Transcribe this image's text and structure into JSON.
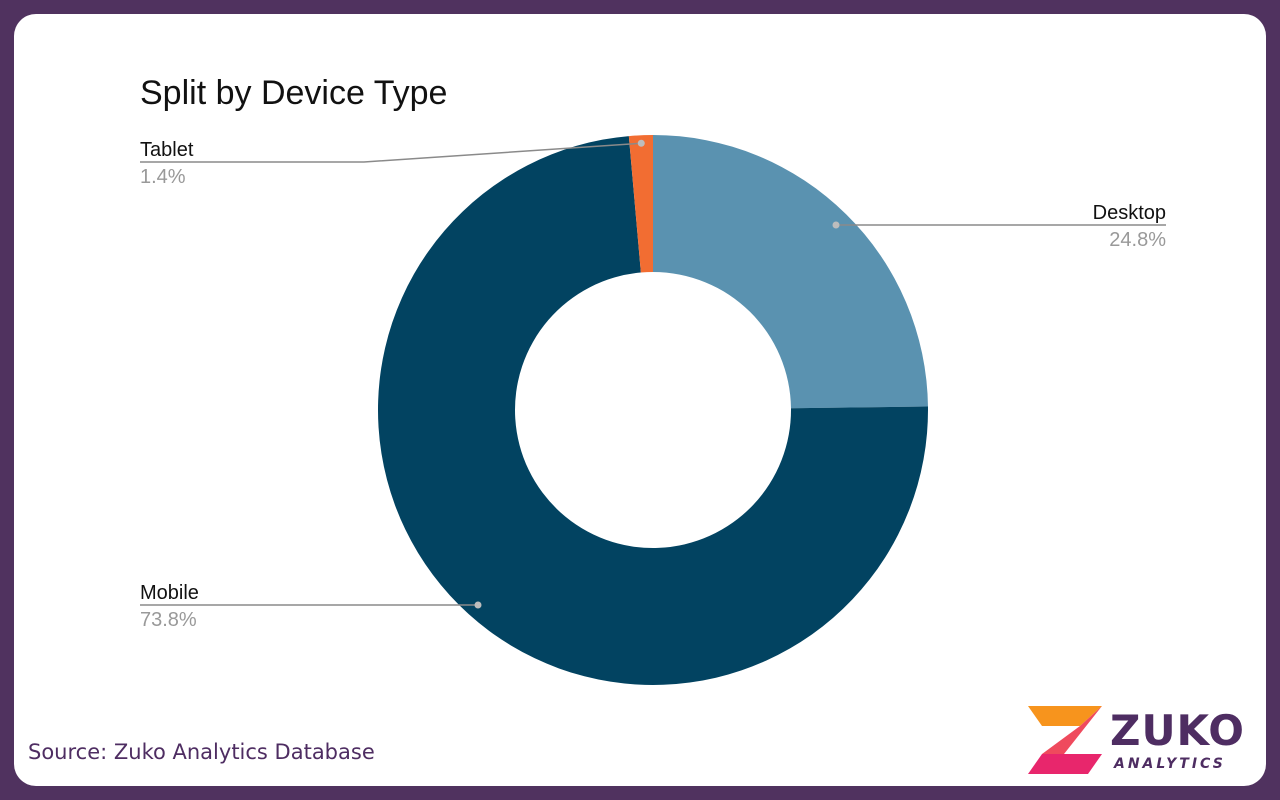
{
  "chart_data": {
    "type": "pie",
    "title": "Split by Device Type",
    "donut": true,
    "slices": [
      {
        "label": "Desktop",
        "value": 24.8,
        "value_label": "24.8%",
        "color": "#5a92b0"
      },
      {
        "label": "Mobile",
        "value": 73.8,
        "value_label": "73.8%",
        "color": "#024361"
      },
      {
        "label": "Tablet",
        "value": 1.4,
        "value_label": "1.4%",
        "color": "#f26d32"
      }
    ],
    "start": "12 o'clock",
    "direction": "clockwise",
    "label_color": "#111111",
    "value_label_color": "#999999",
    "leader_color": "#8a8a8a"
  },
  "footer": {
    "source": "Source: Zuko Analytics Database"
  },
  "logo": {
    "name": "ZUKO",
    "subtitle": "ANALYTICS",
    "colors": {
      "primary": "#4e2d62",
      "accent_top": "#f7941d",
      "accent_bottom": "#e8266c"
    }
  }
}
